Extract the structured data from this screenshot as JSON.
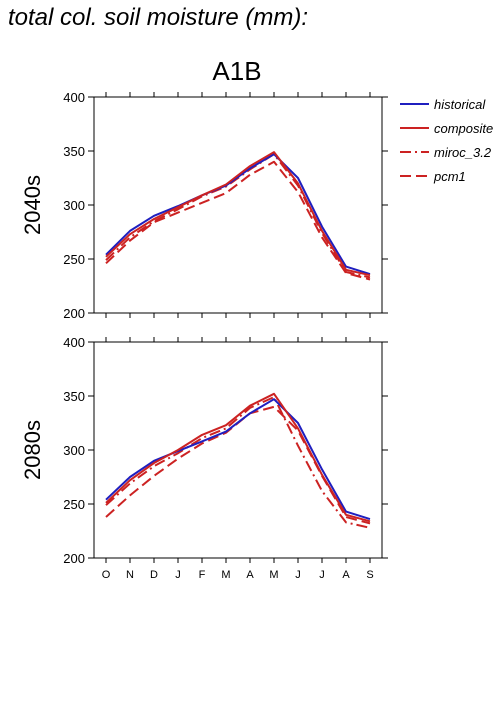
{
  "page_title": "total col. soil moisture (mm):",
  "chart_data": {
    "type": "line",
    "scenario": "A1B",
    "months": [
      "O",
      "N",
      "D",
      "J",
      "F",
      "M",
      "A",
      "M",
      "J",
      "J",
      "A",
      "S"
    ],
    "ylim": [
      200,
      400
    ],
    "yticks": [
      200,
      250,
      300,
      350,
      400
    ],
    "legend": [
      {
        "name": "historical",
        "color": "#1f1fbf",
        "dash": "solid"
      },
      {
        "name": "composite",
        "color": "#cc2222",
        "dash": "solid"
      },
      {
        "name": "miroc_3.2",
        "color": "#cc2222",
        "dash": "dashdot"
      },
      {
        "name": "pcm1",
        "color": "#cc2222",
        "dash": "dashed"
      }
    ],
    "panels": [
      {
        "label": "2040s",
        "series": [
          {
            "name": "historical",
            "values": [
              254,
              276,
              290,
              299,
              309,
              318,
              334,
              347,
              325,
              280,
              243,
              236
            ]
          },
          {
            "name": "composite",
            "values": [
              252,
              273,
              287,
              298,
              309,
              319,
              336,
              349,
              320,
              276,
              240,
              235
            ]
          },
          {
            "name": "miroc_3.2",
            "values": [
              249,
              270,
              285,
              296,
              308,
              317,
              333,
              347,
              318,
              274,
              238,
              233
            ]
          },
          {
            "name": "pcm1",
            "values": [
              246,
              267,
              284,
              293,
              302,
              311,
              328,
              340,
              312,
              270,
              237,
              231
            ]
          }
        ]
      },
      {
        "label": "2080s",
        "series": [
          {
            "name": "historical",
            "values": [
              254,
              275,
              290,
              299,
              308,
              317,
              334,
              347,
              325,
              282,
              243,
              236
            ]
          },
          {
            "name": "composite",
            "values": [
              251,
              272,
              288,
              300,
              314,
              323,
              341,
              352,
              320,
              277,
              240,
              234
            ]
          },
          {
            "name": "miroc_3.2",
            "values": [
              249,
              269,
              285,
              297,
              311,
              320,
              339,
              349,
              304,
              262,
              233,
              228
            ]
          },
          {
            "name": "pcm1",
            "values": [
              238,
              258,
              276,
              292,
              306,
              316,
              334,
              340,
              318,
              276,
              238,
              232
            ]
          }
        ]
      }
    ]
  }
}
